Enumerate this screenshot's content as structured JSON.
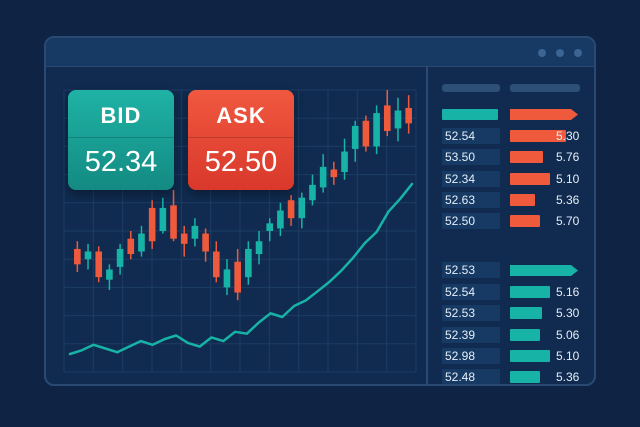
{
  "colors": {
    "up": "#17b3a6",
    "down": "#ef5a3c",
    "line": "#17b3a6",
    "background": "#0f2444"
  },
  "window": {
    "controls": [
      "dot",
      "dot",
      "dot"
    ]
  },
  "quote": {
    "bid": {
      "label": "BID",
      "price": "52.34"
    },
    "ask": {
      "label": "ASK",
      "price": "52.50"
    }
  },
  "order_book": {
    "asks": [
      {
        "price": "52.54",
        "size": "5.30",
        "depth": 0.85
      },
      {
        "price": "53.50",
        "size": "5.76",
        "depth": 0.5
      },
      {
        "price": "52.34",
        "size": "5.10",
        "depth": 0.6
      },
      {
        "price": "52.63",
        "size": "5.36",
        "depth": 0.38
      },
      {
        "price": "52.50",
        "size": "5.70",
        "depth": 0.45
      }
    ],
    "bids": [
      {
        "price": "52.53",
        "size": "",
        "depth": 1.0
      },
      {
        "price": "52.54",
        "size": "5.16",
        "depth": 0.6
      },
      {
        "price": "52.53",
        "size": "5.30",
        "depth": 0.48
      },
      {
        "price": "52.39",
        "size": "5.06",
        "depth": 0.45
      },
      {
        "price": "52.98",
        "size": "5.10",
        "depth": 0.6
      },
      {
        "price": "52.48",
        "size": "5.36",
        "depth": 0.45
      }
    ]
  },
  "chart_data": {
    "type": "candlestick",
    "series": [
      {
        "values": [
          [
            48,
            42,
            51,
            39
          ],
          [
            44,
            47,
            50,
            40
          ],
          [
            47,
            37,
            49,
            35
          ],
          [
            36,
            40,
            42,
            32
          ],
          [
            41,
            48,
            50,
            38
          ],
          [
            52,
            46,
            55,
            44
          ],
          [
            47,
            54,
            57,
            45
          ],
          [
            64,
            51,
            67,
            48
          ],
          [
            55,
            64,
            68,
            54
          ],
          [
            65,
            52,
            71,
            51
          ],
          [
            54,
            50,
            57,
            45
          ],
          [
            52,
            57,
            60,
            49
          ],
          [
            54,
            47,
            56,
            43
          ],
          [
            47,
            37,
            51,
            35
          ],
          [
            33,
            40,
            44,
            30
          ],
          [
            43,
            31,
            48,
            28
          ],
          [
            37,
            48,
            51,
            34
          ],
          [
            46,
            51,
            55,
            42
          ],
          [
            55,
            58,
            60,
            51
          ],
          [
            56,
            63,
            66,
            53
          ],
          [
            67,
            60,
            69,
            57
          ],
          [
            60,
            68,
            70,
            56
          ],
          [
            67,
            73,
            77,
            65
          ],
          [
            72,
            80,
            85,
            70
          ],
          [
            79,
            76,
            82,
            73
          ],
          [
            78,
            86,
            91,
            75
          ],
          [
            87,
            96,
            98,
            82
          ],
          [
            98,
            88,
            100,
            86
          ],
          [
            88,
            101,
            104,
            85
          ],
          [
            104,
            94,
            110,
            92
          ],
          [
            95,
            102,
            107,
            90
          ],
          [
            103,
            97,
            108,
            93
          ]
        ]
      },
      {
        "values": [
          8,
          10,
          13,
          11,
          9,
          12,
          15,
          13,
          16,
          18,
          14,
          12,
          17,
          15,
          20,
          19,
          25,
          30,
          28,
          34,
          37,
          42,
          47,
          53,
          60,
          68,
          74,
          85,
          92,
          100
        ]
      }
    ]
  }
}
